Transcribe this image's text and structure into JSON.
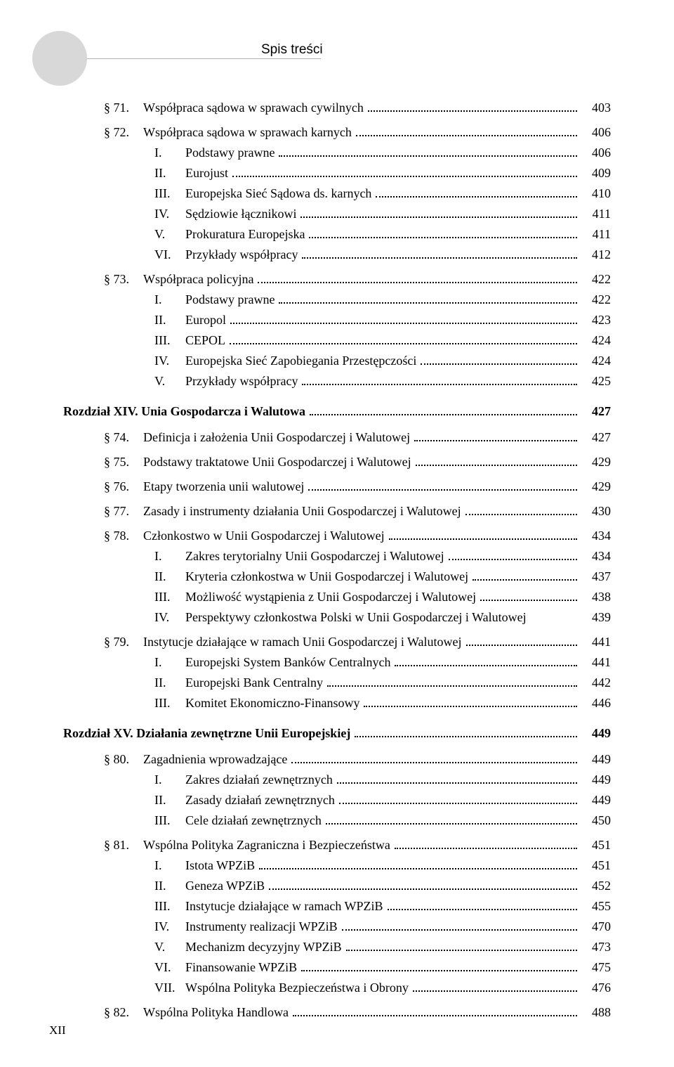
{
  "header": {
    "title": "Spis treści"
  },
  "footer": {
    "page_number": "XII"
  },
  "toc": [
    {
      "type": "section",
      "indent": 1,
      "num": "§ 71.",
      "text": "Współpraca sądowa w sprawach cywilnych",
      "page": "403",
      "spacer_after": true
    },
    {
      "type": "section",
      "indent": 1,
      "num": "§ 72.",
      "text": "Współpraca sądowa w sprawach karnych",
      "page": "406"
    },
    {
      "type": "sub",
      "indent": 2,
      "num": "I.",
      "text": "Podstawy prawne",
      "page": "406"
    },
    {
      "type": "sub",
      "indent": 2,
      "num": "II.",
      "text": "Eurojust",
      "page": "409"
    },
    {
      "type": "sub",
      "indent": 2,
      "num": "III.",
      "text": "Europejska Sieć Sądowa ds. karnych",
      "page": "410"
    },
    {
      "type": "sub",
      "indent": 2,
      "num": "IV.",
      "text": "Sędziowie łącznikowi",
      "page": "411"
    },
    {
      "type": "sub",
      "indent": 2,
      "num": "V.",
      "text": "Prokuratura Europejska",
      "page": "411"
    },
    {
      "type": "sub",
      "indent": 2,
      "num": "VI.",
      "text": "Przykłady współpracy",
      "page": "412",
      "spacer_after": true
    },
    {
      "type": "section",
      "indent": 1,
      "num": "§ 73.",
      "text": "Współpraca policyjna",
      "page": "422"
    },
    {
      "type": "sub",
      "indent": 2,
      "num": "I.",
      "text": "Podstawy prawne",
      "page": "422"
    },
    {
      "type": "sub",
      "indent": 2,
      "num": "II.",
      "text": "Europol",
      "page": "423"
    },
    {
      "type": "sub",
      "indent": 2,
      "num": "III.",
      "text": "CEPOL",
      "page": "424"
    },
    {
      "type": "sub",
      "indent": 2,
      "num": "IV.",
      "text": "Europejska Sieć Zapobiegania Przestępczości",
      "page": "424"
    },
    {
      "type": "sub",
      "indent": 2,
      "num": "V.",
      "text": "Przykłady współpracy",
      "page": "425",
      "spacer_after": true
    },
    {
      "type": "chapter",
      "indent": 0,
      "num": "",
      "text": "Rozdział XIV. Unia Gospodarcza i Walutowa",
      "page": "427",
      "bold": true,
      "spacer_after": true
    },
    {
      "type": "section",
      "indent": 1,
      "num": "§ 74.",
      "text": "Definicja i założenia Unii Gospodarczej i Walutowej",
      "page": "427",
      "spacer_after": true
    },
    {
      "type": "section",
      "indent": 1,
      "num": "§ 75.",
      "text": "Podstawy traktatowe Unii Gospodarczej i Walutowej",
      "page": "429",
      "spacer_after": true
    },
    {
      "type": "section",
      "indent": 1,
      "num": "§ 76.",
      "text": "Etapy tworzenia unii walutowej",
      "page": "429",
      "spacer_after": true
    },
    {
      "type": "section",
      "indent": 1,
      "num": "§ 77.",
      "text": "Zasady i instrumenty działania Unii Gospodarczej i Walutowej",
      "page": "430",
      "spacer_after": true
    },
    {
      "type": "section",
      "indent": 1,
      "num": "§ 78.",
      "text": "Członkostwo w Unii Gospodarczej i Walutowej",
      "page": "434"
    },
    {
      "type": "sub",
      "indent": 2,
      "num": "I.",
      "text": "Zakres terytorialny Unii Gospodarczej i Walutowej",
      "page": "434"
    },
    {
      "type": "sub",
      "indent": 2,
      "num": "II.",
      "text": "Kryteria członkostwa w Unii Gospodarczej i Walutowej",
      "page": "437"
    },
    {
      "type": "sub",
      "indent": 2,
      "num": "III.",
      "text": "Możliwość wystąpienia z Unii Gospodarczej i Walutowej",
      "page": "438"
    },
    {
      "type": "sub",
      "indent": 2,
      "num": "IV.",
      "text": "Perspektywy członkostwa Polski w Unii Gospodarczej i Walutowej",
      "page": "439",
      "no_dots": true,
      "spacer_after": true
    },
    {
      "type": "section",
      "indent": 1,
      "num": "§ 79.",
      "text": "Instytucje działające w ramach Unii Gospodarczej i Walutowej",
      "page": "441"
    },
    {
      "type": "sub",
      "indent": 2,
      "num": "I.",
      "text": "Europejski System Banków Centralnych",
      "page": "441"
    },
    {
      "type": "sub",
      "indent": 2,
      "num": "II.",
      "text": "Europejski Bank Centralny",
      "page": "442"
    },
    {
      "type": "sub",
      "indent": 2,
      "num": "III.",
      "text": "Komitet Ekonomiczno-Finansowy",
      "page": "446",
      "spacer_after": true
    },
    {
      "type": "chapter",
      "indent": 0,
      "num": "",
      "text": "Rozdział XV. Działania zewnętrzne Unii Europejskiej",
      "page": "449",
      "bold": true,
      "spacer_after": true
    },
    {
      "type": "section",
      "indent": 1,
      "num": "§ 80.",
      "text": "Zagadnienia wprowadzające",
      "page": "449"
    },
    {
      "type": "sub",
      "indent": 2,
      "num": "I.",
      "text": "Zakres działań zewnętrznych",
      "page": "449"
    },
    {
      "type": "sub",
      "indent": 2,
      "num": "II.",
      "text": "Zasady działań zewnętrznych",
      "page": "449"
    },
    {
      "type": "sub",
      "indent": 2,
      "num": "III.",
      "text": "Cele działań zewnętrznych",
      "page": "450",
      "spacer_after": true
    },
    {
      "type": "section",
      "indent": 1,
      "num": "§ 81.",
      "text": "Wspólna Polityka Zagraniczna i Bezpieczeństwa",
      "page": "451"
    },
    {
      "type": "sub",
      "indent": 2,
      "num": "I.",
      "text": "Istota WPZiB",
      "page": "451"
    },
    {
      "type": "sub",
      "indent": 2,
      "num": "II.",
      "text": "Geneza WPZiB",
      "page": "452"
    },
    {
      "type": "sub",
      "indent": 2,
      "num": "III.",
      "text": "Instytucje działające w ramach WPZiB",
      "page": "455"
    },
    {
      "type": "sub",
      "indent": 2,
      "num": "IV.",
      "text": "Instrumenty realizacji WPZiB",
      "page": "470"
    },
    {
      "type": "sub",
      "indent": 2,
      "num": "V.",
      "text": "Mechanizm decyzyjny WPZiB",
      "page": "473"
    },
    {
      "type": "sub",
      "indent": 2,
      "num": "VI.",
      "text": "Finansowanie WPZiB",
      "page": "475"
    },
    {
      "type": "sub",
      "indent": 2,
      "num": "VII.",
      "text": "Wspólna Polityka Bezpieczeństwa i Obrony",
      "page": "476",
      "spacer_after": true
    },
    {
      "type": "section",
      "indent": 1,
      "num": "§ 82.",
      "text": "Wspólna Polityka Handlowa",
      "page": "488"
    }
  ]
}
